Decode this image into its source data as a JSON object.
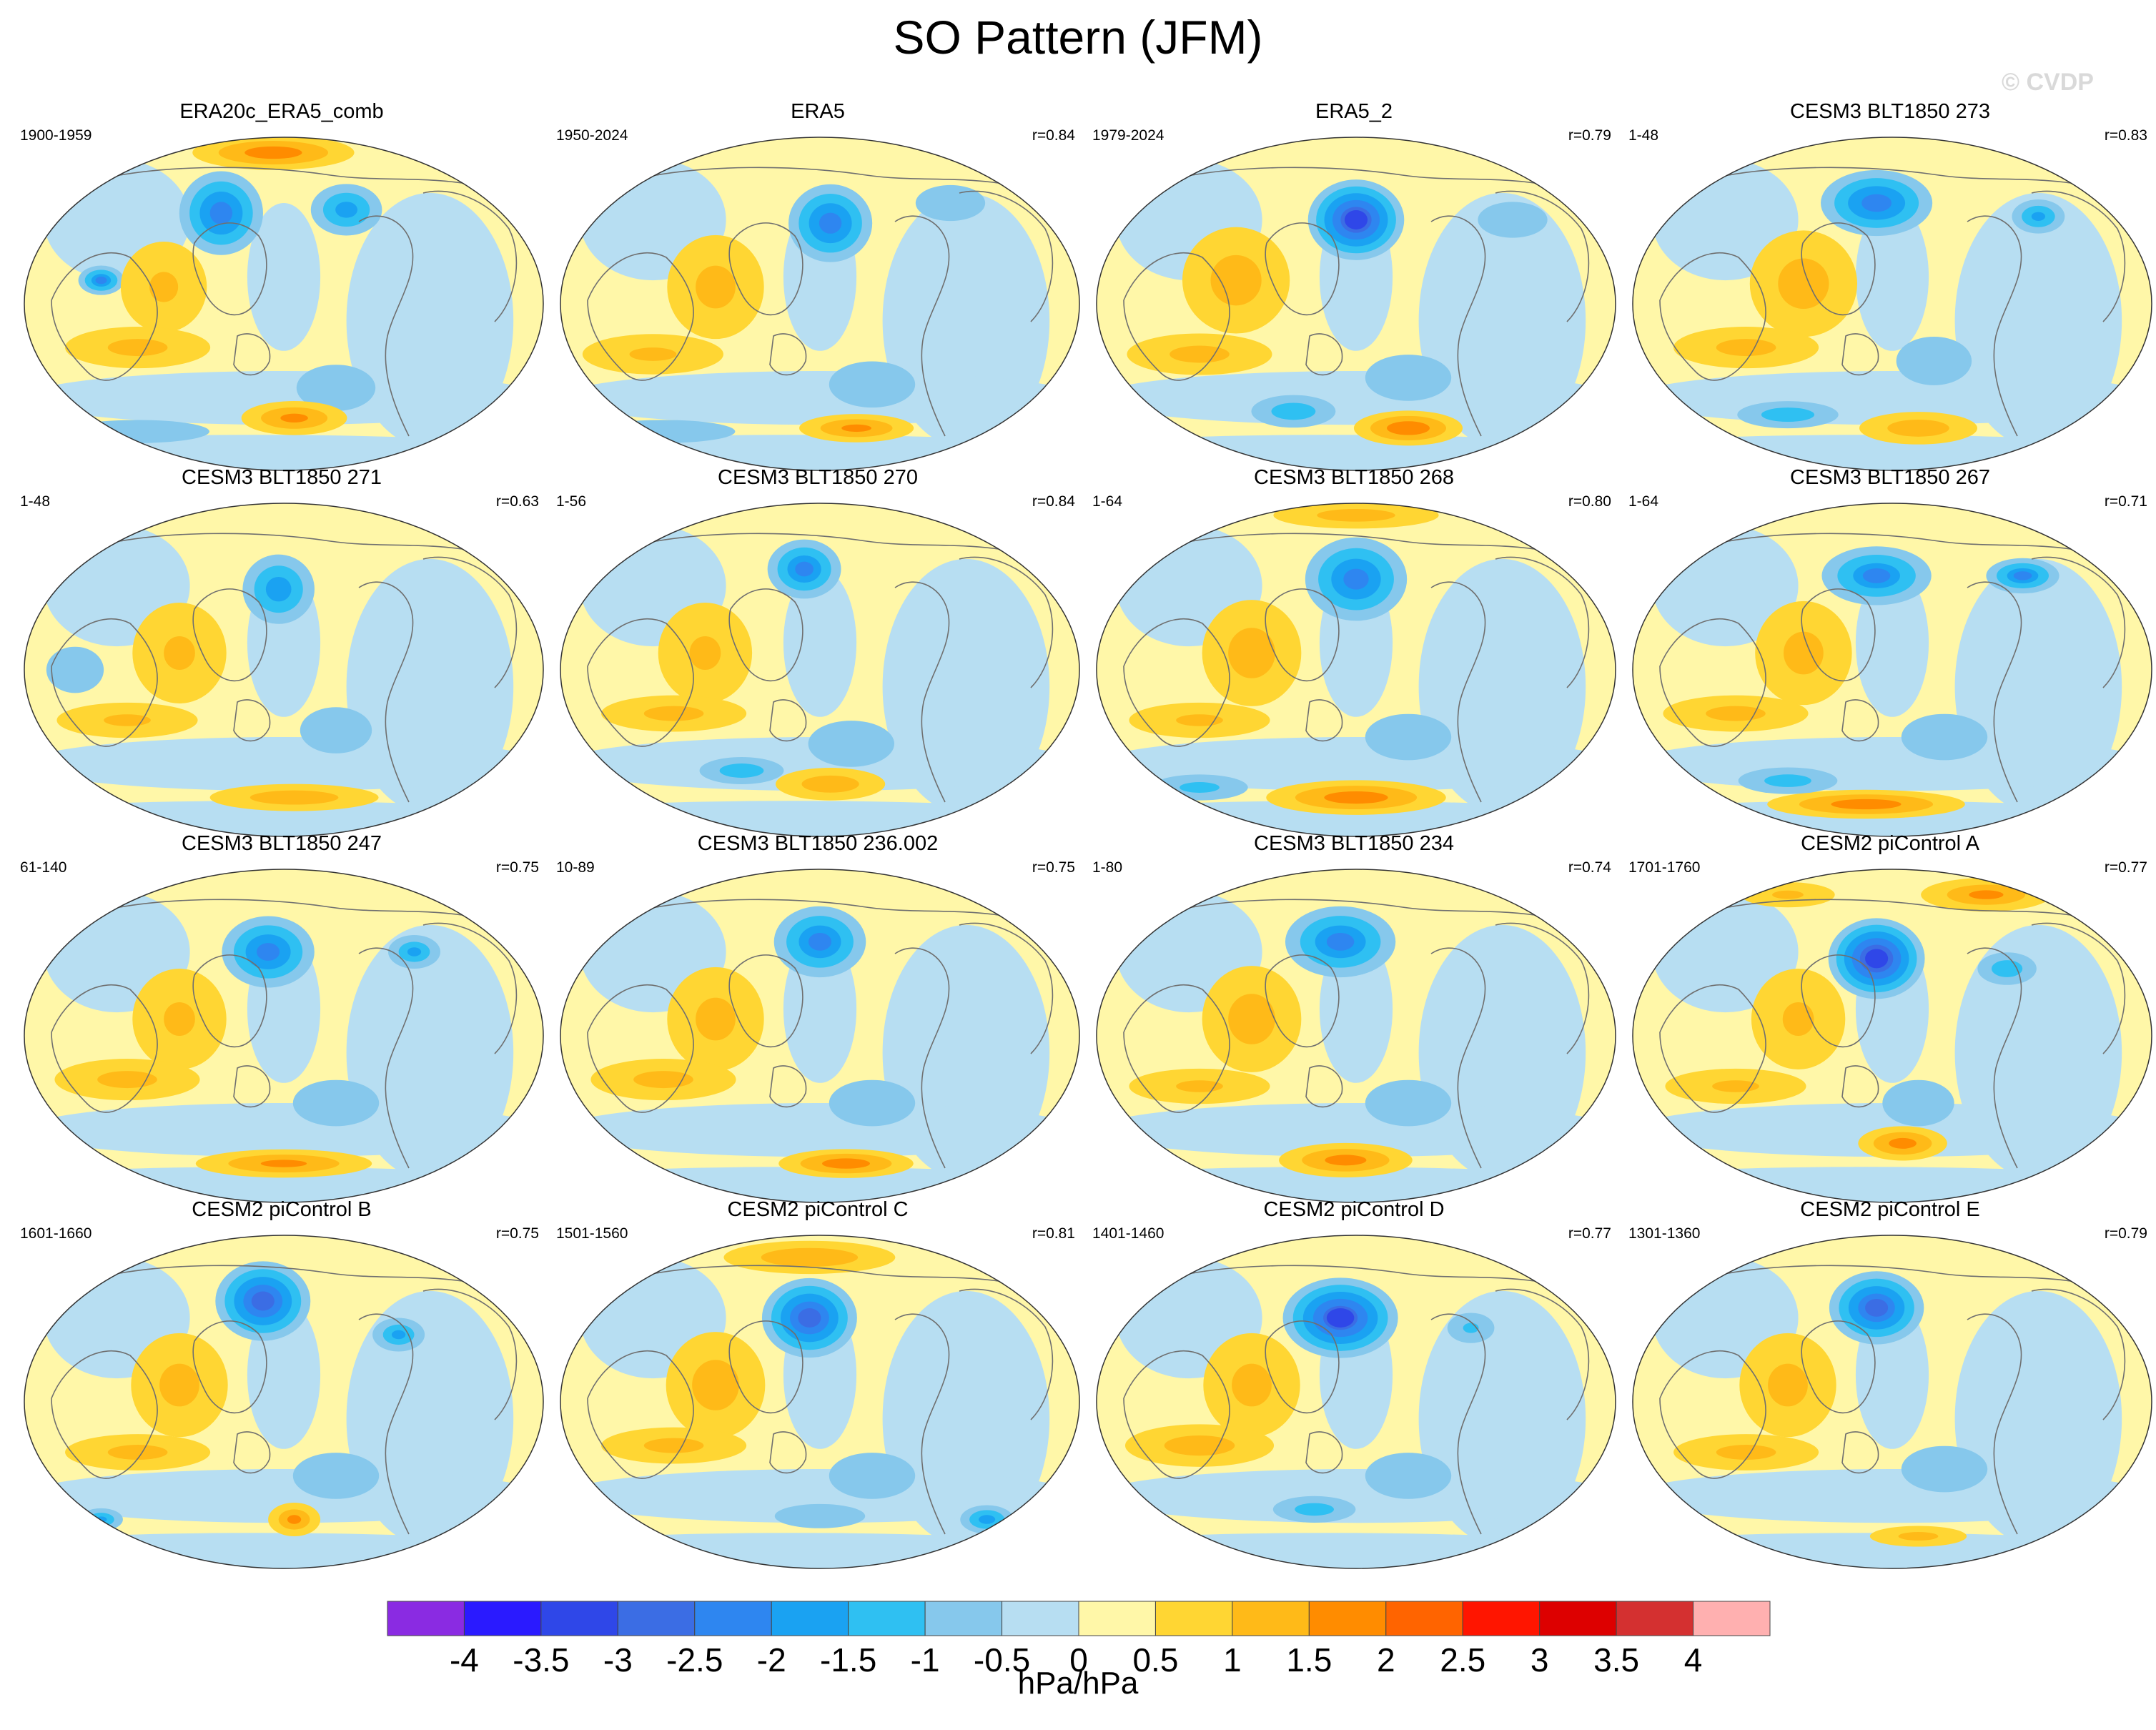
{
  "title": "SO Pattern (JFM)",
  "watermark": "© CVDP",
  "panels": [
    {
      "title": "ERA20c_ERA5_comb",
      "years": "1900-1959",
      "corr": "",
      "blobs": [
        [
          0.15,
          0.43,
          0.05,
          0.05,
          -2.0
        ],
        [
          0.38,
          0.23,
          0.09,
          0.14,
          -2.3
        ],
        [
          0.62,
          0.22,
          0.08,
          0.09,
          -1.7
        ],
        [
          0.48,
          0.05,
          0.18,
          0.06,
          1.8
        ],
        [
          0.27,
          0.45,
          0.11,
          0.18,
          1.0
        ],
        [
          0.22,
          0.63,
          0.18,
          0.08,
          1.1
        ],
        [
          0.6,
          0.75,
          0.11,
          0.1,
          -0.8
        ],
        [
          0.52,
          0.84,
          0.12,
          0.06,
          1.6
        ],
        [
          0.22,
          0.88,
          0.2,
          0.05,
          -0.8
        ]
      ]
    },
    {
      "title": "ERA5",
      "years": "1950-2024",
      "corr": "r=0.84",
      "blobs": [
        [
          0.52,
          0.26,
          0.09,
          0.13,
          -2.3
        ],
        [
          0.3,
          0.45,
          0.12,
          0.2,
          1.1
        ],
        [
          0.18,
          0.65,
          0.18,
          0.08,
          1.0
        ],
        [
          0.6,
          0.74,
          0.12,
          0.1,
          -0.8
        ],
        [
          0.57,
          0.87,
          0.13,
          0.05,
          1.6
        ],
        [
          0.2,
          0.88,
          0.2,
          0.05,
          -0.8
        ],
        [
          0.75,
          0.2,
          0.1,
          0.08,
          -0.7
        ]
      ]
    },
    {
      "title": "ERA5_2",
      "years": "1979-2024",
      "corr": "r=0.79",
      "blobs": [
        [
          0.5,
          0.25,
          0.1,
          0.13,
          -3.2
        ],
        [
          0.27,
          0.43,
          0.13,
          0.2,
          1.2
        ],
        [
          0.2,
          0.65,
          0.18,
          0.08,
          1.1
        ],
        [
          0.6,
          0.72,
          0.12,
          0.1,
          -0.8
        ],
        [
          0.6,
          0.87,
          0.12,
          0.06,
          1.9
        ],
        [
          0.38,
          0.82,
          0.1,
          0.06,
          -1.3
        ],
        [
          0.8,
          0.25,
          0.1,
          0.08,
          -0.7
        ]
      ]
    },
    {
      "title": "CESM3 BLT1850 273",
      "years": "1-48",
      "corr": "r=0.83",
      "blobs": [
        [
          0.47,
          0.2,
          0.12,
          0.11,
          -2.3
        ],
        [
          0.78,
          0.24,
          0.06,
          0.06,
          -1.6
        ],
        [
          0.33,
          0.44,
          0.13,
          0.2,
          1.2
        ],
        [
          0.22,
          0.63,
          0.18,
          0.08,
          1.1
        ],
        [
          0.58,
          0.67,
          0.1,
          0.1,
          -0.9
        ],
        [
          0.55,
          0.87,
          0.14,
          0.06,
          1.3
        ],
        [
          0.3,
          0.83,
          0.12,
          0.05,
          -1.3
        ]
      ]
    },
    {
      "title": "CESM3 BLT1850 271",
      "years": "1-48",
      "corr": "r=0.63",
      "blobs": [
        [
          0.49,
          0.26,
          0.08,
          0.12,
          -1.8
        ],
        [
          0.3,
          0.45,
          0.12,
          0.2,
          1.0
        ],
        [
          0.2,
          0.65,
          0.18,
          0.07,
          1.0
        ],
        [
          0.6,
          0.68,
          0.1,
          0.1,
          -0.8
        ],
        [
          0.52,
          0.88,
          0.2,
          0.05,
          1.3
        ],
        [
          0.1,
          0.5,
          0.08,
          0.1,
          -0.8
        ]
      ]
    },
    {
      "title": "CESM3 BLT1850 270",
      "years": "1-56",
      "corr": "r=0.84",
      "blobs": [
        [
          0.47,
          0.2,
          0.08,
          0.1,
          -2.1
        ],
        [
          0.28,
          0.45,
          0.12,
          0.2,
          1.0
        ],
        [
          0.22,
          0.63,
          0.18,
          0.07,
          1.1
        ],
        [
          0.56,
          0.72,
          0.12,
          0.1,
          -0.8
        ],
        [
          0.52,
          0.84,
          0.13,
          0.06,
          1.3
        ],
        [
          0.35,
          0.8,
          0.1,
          0.05,
          -1.3
        ]
      ]
    },
    {
      "title": "CESM3 BLT1850 268",
      "years": "1-64",
      "corr": "r=0.80",
      "blobs": [
        [
          0.5,
          0.23,
          0.11,
          0.14,
          -2.2
        ],
        [
          0.5,
          0.04,
          0.2,
          0.05,
          1.2
        ],
        [
          0.3,
          0.45,
          0.12,
          0.2,
          1.2
        ],
        [
          0.2,
          0.65,
          0.18,
          0.07,
          1.0
        ],
        [
          0.6,
          0.7,
          0.12,
          0.1,
          -0.8
        ],
        [
          0.5,
          0.88,
          0.2,
          0.06,
          1.8
        ],
        [
          0.2,
          0.85,
          0.12,
          0.05,
          -1.1
        ]
      ]
    },
    {
      "title": "CESM3 BLT1850 267",
      "years": "1-64",
      "corr": "r=0.71",
      "blobs": [
        [
          0.47,
          0.22,
          0.12,
          0.1,
          -2.0
        ],
        [
          0.75,
          0.22,
          0.08,
          0.06,
          -2.0
        ],
        [
          0.33,
          0.45,
          0.12,
          0.2,
          1.1
        ],
        [
          0.2,
          0.63,
          0.18,
          0.07,
          1.1
        ],
        [
          0.6,
          0.7,
          0.12,
          0.1,
          -0.8
        ],
        [
          0.45,
          0.9,
          0.22,
          0.05,
          1.8
        ],
        [
          0.3,
          0.83,
          0.12,
          0.05,
          -1.2
        ]
      ]
    },
    {
      "title": "CESM3 BLT1850 247",
      "years": "61-140",
      "corr": "r=0.75",
      "blobs": [
        [
          0.47,
          0.25,
          0.1,
          0.12,
          -2.2
        ],
        [
          0.75,
          0.25,
          0.06,
          0.06,
          -1.5
        ],
        [
          0.3,
          0.45,
          0.12,
          0.2,
          1.0
        ],
        [
          0.2,
          0.63,
          0.18,
          0.08,
          1.1
        ],
        [
          0.6,
          0.7,
          0.12,
          0.1,
          -0.8
        ],
        [
          0.5,
          0.88,
          0.2,
          0.05,
          1.6
        ]
      ]
    },
    {
      "title": "CESM3 BLT1850 236.002",
      "years": "10-89",
      "corr": "r=0.75",
      "blobs": [
        [
          0.5,
          0.22,
          0.1,
          0.12,
          -2.1
        ],
        [
          0.3,
          0.45,
          0.12,
          0.2,
          1.1
        ],
        [
          0.2,
          0.63,
          0.18,
          0.08,
          1.1
        ],
        [
          0.6,
          0.7,
          0.12,
          0.1,
          -0.8
        ],
        [
          0.55,
          0.88,
          0.15,
          0.05,
          1.8
        ]
      ]
    },
    {
      "title": "CESM3 BLT1850 234",
      "years": "1-80",
      "corr": "r=0.74",
      "blobs": [
        [
          0.47,
          0.22,
          0.12,
          0.12,
          -2.1
        ],
        [
          0.3,
          0.45,
          0.12,
          0.2,
          1.2
        ],
        [
          0.2,
          0.65,
          0.18,
          0.07,
          1.0
        ],
        [
          0.6,
          0.7,
          0.12,
          0.1,
          -0.8
        ],
        [
          0.48,
          0.87,
          0.15,
          0.06,
          1.7
        ]
      ]
    },
    {
      "title": "CESM2 piControl A",
      "years": "1701-1760",
      "corr": "r=0.77",
      "blobs": [
        [
          0.47,
          0.27,
          0.1,
          0.13,
          -3.3
        ],
        [
          0.72,
          0.3,
          0.07,
          0.06,
          -1.3
        ],
        [
          0.68,
          0.08,
          0.15,
          0.06,
          1.5
        ],
        [
          0.3,
          0.08,
          0.12,
          0.05,
          1.0
        ],
        [
          0.32,
          0.45,
          0.12,
          0.2,
          1.0
        ],
        [
          0.2,
          0.65,
          0.18,
          0.07,
          1.0
        ],
        [
          0.55,
          0.7,
          0.1,
          0.1,
          -0.8
        ],
        [
          0.52,
          0.82,
          0.1,
          0.06,
          1.7
        ]
      ]
    },
    {
      "title": "CESM2 piControl B",
      "years": "1601-1660",
      "corr": "r=0.75",
      "blobs": [
        [
          0.46,
          0.2,
          0.1,
          0.13,
          -2.8
        ],
        [
          0.72,
          0.3,
          0.06,
          0.06,
          -1.5
        ],
        [
          0.3,
          0.45,
          0.12,
          0.2,
          1.1
        ],
        [
          0.22,
          0.65,
          0.18,
          0.07,
          1.1
        ],
        [
          0.6,
          0.72,
          0.12,
          0.1,
          -0.8
        ],
        [
          0.52,
          0.85,
          0.06,
          0.06,
          1.5
        ],
        [
          0.15,
          0.85,
          0.05,
          0.04,
          -1.5
        ]
      ]
    },
    {
      "title": "CESM2 piControl C",
      "years": "1501-1560",
      "corr": "r=0.81",
      "blobs": [
        [
          0.48,
          0.25,
          0.1,
          0.13,
          -2.8
        ],
        [
          0.48,
          0.07,
          0.2,
          0.06,
          1.4
        ],
        [
          0.3,
          0.45,
          0.12,
          0.2,
          1.2
        ],
        [
          0.22,
          0.63,
          0.18,
          0.07,
          1.1
        ],
        [
          0.6,
          0.72,
          0.12,
          0.1,
          -0.8
        ],
        [
          0.82,
          0.85,
          0.06,
          0.05,
          -1.7
        ],
        [
          0.5,
          0.84,
          0.12,
          0.05,
          -0.9
        ]
      ]
    },
    {
      "title": "CESM2 piControl D",
      "years": "1401-1460",
      "corr": "r=0.77",
      "blobs": [
        [
          0.47,
          0.25,
          0.12,
          0.13,
          -3.1
        ],
        [
          0.72,
          0.28,
          0.06,
          0.06,
          -1.0
        ],
        [
          0.3,
          0.45,
          0.12,
          0.2,
          1.1
        ],
        [
          0.2,
          0.63,
          0.18,
          0.08,
          1.2
        ],
        [
          0.6,
          0.72,
          0.12,
          0.1,
          -0.8
        ],
        [
          0.42,
          0.82,
          0.1,
          0.05,
          -1.2
        ]
      ]
    },
    {
      "title": "CESM2 piControl E",
      "years": "1301-1360",
      "corr": "r=0.79",
      "blobs": [
        [
          0.47,
          0.22,
          0.1,
          0.12,
          -2.7
        ],
        [
          0.3,
          0.45,
          0.12,
          0.2,
          1.1
        ],
        [
          0.22,
          0.65,
          0.18,
          0.07,
          1.1
        ],
        [
          0.6,
          0.7,
          0.12,
          0.1,
          -0.8
        ],
        [
          0.55,
          0.9,
          0.12,
          0.04,
          1.1
        ]
      ]
    }
  ],
  "colorbar": {
    "levels": [
      -4,
      -3.5,
      -3,
      -2.5,
      -2,
      -1.5,
      -1,
      -0.5,
      0,
      0.5,
      1,
      1.5,
      2,
      2.5,
      3,
      3.5,
      4
    ],
    "labels": [
      "-4",
      "-3.5",
      "-3",
      "-2.5",
      "-2",
      "-1.5",
      "-1",
      "-0.5",
      "0",
      "0.5",
      "1",
      "1.5",
      "2",
      "2.5",
      "3",
      "3.5",
      "4"
    ],
    "colors": [
      "#8a2be2",
      "#2a1aff",
      "#2f47e8",
      "#3b6de4",
      "#2e86f0",
      "#1aa2f2",
      "#2fc0f2",
      "#86c8ec",
      "#b7def2",
      "#fff7a8",
      "#ffd633",
      "#ffba18",
      "#ff8c00",
      "#ff6400",
      "#ff1500",
      "#dd0000",
      "#d43030",
      "#ffb0b0"
    ],
    "units": "hPa/hPa"
  }
}
